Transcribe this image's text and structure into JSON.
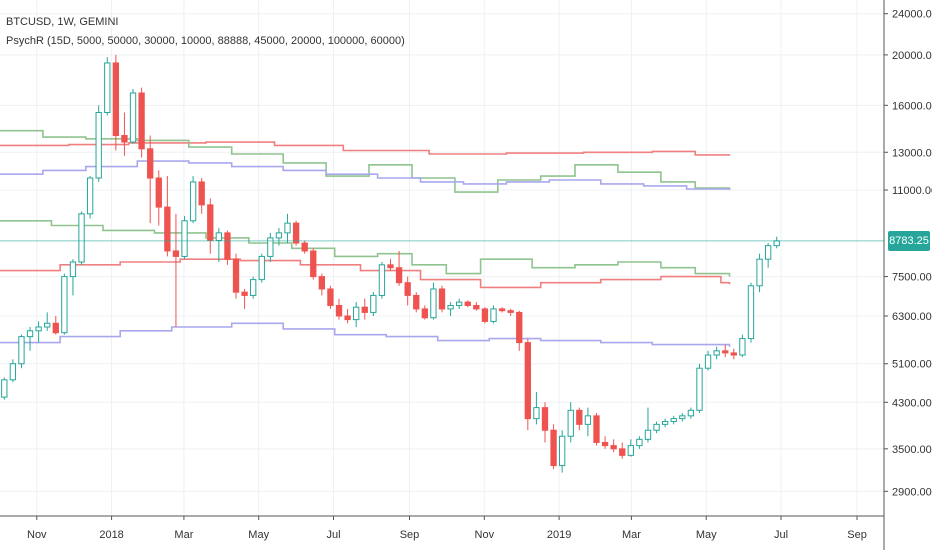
{
  "legend": {
    "title": "BTCUSD, 1W, GEMINI",
    "indicator": "PsychR (15D, 5000, 50000, 30000, 10000, 88888, 45000, 20000, 100000, 60000)"
  },
  "colors": {
    "up": "#26a69a",
    "down": "#ef5350",
    "red_line": "#f08080",
    "green_line": "#8fc48f",
    "blue_line": "#a9a7ee",
    "grid": "#eef0f3",
    "last_price_bg": "#26a69a"
  },
  "last_price": {
    "label": "8783.25",
    "value": 8783.25
  },
  "chart_data": {
    "type": "candlestick",
    "title": "BTCUSD, 1W, GEMINI",
    "y_scale": "log",
    "ylim": [
      2600,
      25500
    ],
    "y_ticks": [
      24000,
      20000,
      16000,
      13000,
      11000,
      8783.25,
      7500,
      6300,
      5100,
      4300,
      3500,
      2900
    ],
    "y_tick_labels": [
      "24000.00",
      "20000.00",
      "16000.00",
      "13000.00",
      "11000.00",
      "",
      "7500.00",
      "6300.00",
      "5100.00",
      "4300.00",
      "3500.00",
      "2900.00"
    ],
    "x_range": [
      "2017-10-02",
      "2019-09-23"
    ],
    "x_ticks": [
      {
        "date": "2017-11-01",
        "label": "Nov"
      },
      {
        "date": "2018-01-01",
        "label": "2018"
      },
      {
        "date": "2018-03-01",
        "label": "Mar"
      },
      {
        "date": "2018-05-01",
        "label": "May"
      },
      {
        "date": "2018-07-01",
        "label": "Jul"
      },
      {
        "date": "2018-09-01",
        "label": "Sep"
      },
      {
        "date": "2018-11-01",
        "label": "Nov"
      },
      {
        "date": "2019-01-01",
        "label": "2019"
      },
      {
        "date": "2019-03-01",
        "label": "Mar"
      },
      {
        "date": "2019-05-01",
        "label": "May"
      },
      {
        "date": "2019-07-01",
        "label": "Jul"
      },
      {
        "date": "2019-09-01",
        "label": "Sep"
      }
    ],
    "candles_start": "2017-10-02",
    "candles_interval_days": 7,
    "candles": [
      [
        4400,
        4800,
        4350,
        4750
      ],
      [
        4750,
        5200,
        4700,
        5100
      ],
      [
        5100,
        5800,
        5000,
        5750
      ],
      [
        5750,
        6000,
        5400,
        5900
      ],
      [
        5900,
        6150,
        5600,
        6000
      ],
      [
        6000,
        6400,
        5900,
        6100
      ],
      [
        6100,
        6300,
        5800,
        5850
      ],
      [
        5850,
        7600,
        5800,
        7500
      ],
      [
        7500,
        8100,
        6900,
        8000
      ],
      [
        8000,
        10000,
        7900,
        9900
      ],
      [
        9900,
        11700,
        9700,
        11600
      ],
      [
        11600,
        16000,
        11400,
        15500
      ],
      [
        15500,
        19800,
        15300,
        19300
      ],
      [
        19300,
        20000,
        13100,
        14000
      ],
      [
        14000,
        15500,
        12800,
        13600
      ],
      [
        13600,
        17200,
        13500,
        16900
      ],
      [
        16900,
        17300,
        12700,
        13200
      ],
      [
        13200,
        14000,
        9500,
        11600
      ],
      [
        11600,
        12000,
        9400,
        10200
      ],
      [
        10200,
        11700,
        8200,
        8400
      ],
      [
        8400,
        9900,
        6000,
        8200
      ],
      [
        8200,
        9800,
        8100,
        9600
      ],
      [
        9600,
        11700,
        9500,
        11400
      ],
      [
        11400,
        11600,
        9900,
        10300
      ],
      [
        10300,
        10600,
        8300,
        8800
      ],
      [
        8800,
        9300,
        8000,
        9100
      ],
      [
        9100,
        9200,
        7900,
        8100
      ],
      [
        8100,
        8300,
        6800,
        7000
      ],
      [
        7000,
        7100,
        6500,
        6900
      ],
      [
        6900,
        7500,
        6800,
        7400
      ],
      [
        7400,
        8300,
        7300,
        8200
      ],
      [
        8200,
        9100,
        8000,
        8900
      ],
      [
        8900,
        9300,
        8600,
        9100
      ],
      [
        9100,
        9900,
        8700,
        9500
      ],
      [
        9500,
        9600,
        8600,
        8700
      ],
      [
        8700,
        8800,
        8300,
        8400
      ],
      [
        8400,
        8500,
        7400,
        7500
      ],
      [
        7500,
        7600,
        6900,
        7100
      ],
      [
        7100,
        7200,
        6500,
        6600
      ],
      [
        6600,
        6800,
        6200,
        6300
      ],
      [
        6300,
        6500,
        6100,
        6200
      ],
      [
        6200,
        6700,
        6000,
        6550
      ],
      [
        6550,
        6800,
        6200,
        6400
      ],
      [
        6400,
        7000,
        6300,
        6900
      ],
      [
        6900,
        8000,
        6800,
        7900
      ],
      [
        7900,
        8100,
        7700,
        7800
      ],
      [
        7800,
        8400,
        7200,
        7300
      ],
      [
        7300,
        7500,
        6600,
        6900
      ],
      [
        6900,
        7000,
        6400,
        6500
      ],
      [
        6500,
        6600,
        6200,
        6250
      ],
      [
        6250,
        7300,
        6200,
        7100
      ],
      [
        7100,
        7200,
        6400,
        6500
      ],
      [
        6500,
        6700,
        6300,
        6600
      ],
      [
        6600,
        6800,
        6500,
        6700
      ],
      [
        6700,
        6750,
        6550,
        6600
      ],
      [
        6600,
        6700,
        6450,
        6500
      ],
      [
        6500,
        6550,
        6100,
        6150
      ],
      [
        6150,
        6600,
        6100,
        6500
      ],
      [
        6500,
        6550,
        6400,
        6450
      ],
      [
        6450,
        6500,
        6300,
        6400
      ],
      [
        6400,
        6450,
        5400,
        5600
      ],
      [
        5600,
        5700,
        3800,
        4000
      ],
      [
        4000,
        4500,
        3900,
        4200
      ],
      [
        4200,
        4300,
        3600,
        3800
      ],
      [
        3800,
        3900,
        3200,
        3250
      ],
      [
        3250,
        3800,
        3150,
        3700
      ],
      [
        3700,
        4300,
        3600,
        4150
      ],
      [
        4150,
        4200,
        3800,
        3900
      ],
      [
        3900,
        4200,
        3700,
        4050
      ],
      [
        4050,
        4100,
        3550,
        3600
      ],
      [
        3600,
        3700,
        3500,
        3550
      ],
      [
        3550,
        3650,
        3450,
        3500
      ],
      [
        3500,
        3600,
        3350,
        3400
      ],
      [
        3400,
        3650,
        3380,
        3550
      ],
      [
        3550,
        3700,
        3500,
        3650
      ],
      [
        3650,
        4200,
        3600,
        3800
      ],
      [
        3800,
        3950,
        3750,
        3900
      ],
      [
        3900,
        4000,
        3850,
        3950
      ],
      [
        3950,
        4050,
        3900,
        4000
      ],
      [
        4000,
        4100,
        3950,
        4050
      ],
      [
        4050,
        4200,
        4000,
        4150
      ],
      [
        4150,
        5100,
        4100,
        5000
      ],
      [
        5000,
        5400,
        4950,
        5300
      ],
      [
        5300,
        5500,
        5200,
        5400
      ],
      [
        5400,
        5550,
        5250,
        5350
      ],
      [
        5350,
        5450,
        5200,
        5300
      ],
      [
        5300,
        5800,
        5250,
        5700
      ],
      [
        5700,
        7300,
        5600,
        7200
      ],
      [
        7200,
        8300,
        7000,
        8100
      ],
      [
        8100,
        8700,
        7800,
        8600
      ],
      [
        8600,
        8950,
        8500,
        8783.25
      ]
    ],
    "series": [
      {
        "name": "",
        "color": "#f08080",
        "points": [
          [
            "2017-10-02",
            13400
          ],
          [
            "2017-11-27",
            13450
          ],
          [
            "2018-01-15",
            13550
          ],
          [
            "2018-03-19",
            13600
          ],
          [
            "2018-05-14",
            13400
          ],
          [
            "2018-07-09",
            13100
          ],
          [
            "2018-09-17",
            12900
          ],
          [
            "2018-11-19",
            12950
          ],
          [
            "2019-01-21",
            13000
          ],
          [
            "2019-03-18",
            13050
          ],
          [
            "2019-04-22",
            12850
          ],
          [
            "2019-05-20",
            12800
          ]
        ]
      },
      {
        "name": "",
        "color": "#8fc48f",
        "points": [
          [
            "2017-10-02",
            14300
          ],
          [
            "2017-11-06",
            13900
          ],
          [
            "2017-12-11",
            13800
          ],
          [
            "2018-01-22",
            13700
          ],
          [
            "2018-03-05",
            13300
          ],
          [
            "2018-04-09",
            12900
          ],
          [
            "2018-05-21",
            12400
          ],
          [
            "2018-06-25",
            11700
          ],
          [
            "2018-07-30",
            12300
          ],
          [
            "2018-09-03",
            11600
          ],
          [
            "2018-10-08",
            10900
          ],
          [
            "2018-11-12",
            11500
          ],
          [
            "2018-12-17",
            11700
          ],
          [
            "2019-01-14",
            12300
          ],
          [
            "2019-02-18",
            11900
          ],
          [
            "2019-03-25",
            11400
          ],
          [
            "2019-04-22",
            11100
          ],
          [
            "2019-05-20",
            11000
          ]
        ]
      },
      {
        "name": "",
        "color": "#a9a7ee",
        "points": [
          [
            "2017-10-02",
            11800
          ],
          [
            "2017-11-06",
            12000
          ],
          [
            "2017-12-11",
            12200
          ],
          [
            "2018-01-22",
            12500
          ],
          [
            "2018-03-05",
            12400
          ],
          [
            "2018-04-09",
            12200
          ],
          [
            "2018-05-21",
            12000
          ],
          [
            "2018-06-25",
            11800
          ],
          [
            "2018-08-06",
            11600
          ],
          [
            "2018-09-10",
            11400
          ],
          [
            "2018-10-15",
            11300
          ],
          [
            "2018-11-19",
            11400
          ],
          [
            "2018-12-24",
            11500
          ],
          [
            "2019-02-04",
            11300
          ],
          [
            "2019-03-11",
            11200
          ],
          [
            "2019-04-15",
            11050
          ],
          [
            "2019-05-20",
            11000
          ]
        ]
      },
      {
        "name": "",
        "color": "#8fc48f",
        "points": [
          [
            "2017-10-02",
            9600
          ],
          [
            "2017-11-13",
            9400
          ],
          [
            "2017-12-25",
            9200
          ],
          [
            "2018-02-05",
            9100
          ],
          [
            "2018-03-19",
            8900
          ],
          [
            "2018-04-23",
            8700
          ],
          [
            "2018-05-28",
            8500
          ],
          [
            "2018-07-02",
            8200
          ],
          [
            "2018-08-06",
            8300
          ],
          [
            "2018-09-03",
            7900
          ],
          [
            "2018-10-01",
            7600
          ],
          [
            "2018-10-29",
            8100
          ],
          [
            "2018-12-10",
            7800
          ],
          [
            "2019-01-14",
            7900
          ],
          [
            "2019-02-18",
            8000
          ],
          [
            "2019-03-25",
            7800
          ],
          [
            "2019-04-22",
            7600
          ],
          [
            "2019-05-20",
            7500
          ]
        ]
      },
      {
        "name": "",
        "color": "#f08080",
        "points": [
          [
            "2017-10-02",
            7700
          ],
          [
            "2017-11-20",
            7900
          ],
          [
            "2018-01-08",
            8000
          ],
          [
            "2018-02-26",
            8100
          ],
          [
            "2018-04-16",
            8050
          ],
          [
            "2018-06-04",
            7900
          ],
          [
            "2018-07-23",
            7700
          ],
          [
            "2018-09-10",
            7400
          ],
          [
            "2018-10-29",
            7150
          ],
          [
            "2018-12-17",
            7300
          ],
          [
            "2019-02-04",
            7400
          ],
          [
            "2019-03-25",
            7500
          ],
          [
            "2019-05-13",
            7300
          ],
          [
            "2019-05-20",
            7250
          ]
        ]
      },
      {
        "name": "",
        "color": "#a9a7ee",
        "points": [
          [
            "2017-10-02",
            5600
          ],
          [
            "2017-11-20",
            5750
          ],
          [
            "2018-01-08",
            5900
          ],
          [
            "2018-02-19",
            6000
          ],
          [
            "2018-04-09",
            6100
          ],
          [
            "2018-05-21",
            5950
          ],
          [
            "2018-07-02",
            5800
          ],
          [
            "2018-08-13",
            5750
          ],
          [
            "2018-09-24",
            5650
          ],
          [
            "2018-11-05",
            5700
          ],
          [
            "2018-12-17",
            5650
          ],
          [
            "2019-02-04",
            5600
          ],
          [
            "2019-03-18",
            5550
          ],
          [
            "2019-05-20",
            5500
          ]
        ]
      }
    ]
  }
}
